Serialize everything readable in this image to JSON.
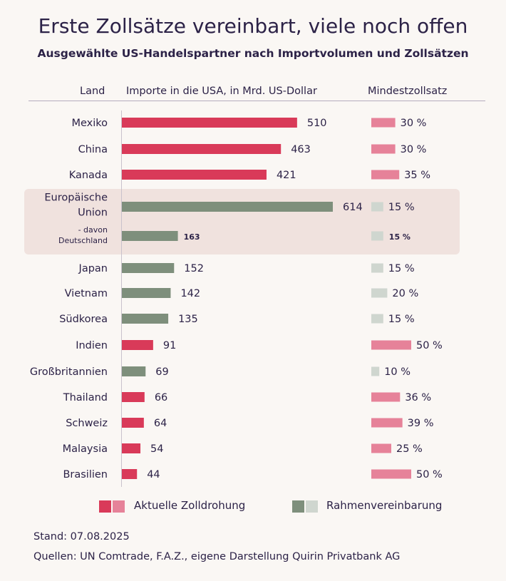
{
  "title": "Erste Zollsätze vereinbart, viele noch offen",
  "subtitle": "Ausgewählte US-Handelspartner nach Importvolumen und Zollsätzen",
  "headers": {
    "land": "Land",
    "imports": "Importe in die USA, in Mrd. US-Dollar",
    "tariff": "Mindestzollsatz"
  },
  "colors": {
    "threat_bar": "#d93a59",
    "threat_tariff": "#e68299",
    "deal_bar": "#7e8f7c",
    "deal_tariff": "#cfd6cf"
  },
  "legend": {
    "threat": "Aktuelle Zolldrohung",
    "deal": "Rahmenvereinbarung"
  },
  "footer": {
    "stand": "Stand: 07.08.2025",
    "source": "Quellen: UN Comtrade, F.A.Z., eigene Darstellung Quirin Privatbank AG"
  },
  "chart_data": {
    "type": "bar",
    "orientation": "horizontal",
    "categories": [
      "Mexiko",
      "China",
      "Kanada",
      "Europäische Union",
      "- davon Deutschland",
      "Japan",
      "Vietnam",
      "Südkorea",
      "Indien",
      "Großbritannien",
      "Thailand",
      "Schweiz",
      "Malaysia",
      "Brasilien"
    ],
    "series": [
      {
        "name": "Importe in die USA, in Mrd. US-Dollar",
        "values": [
          510,
          463,
          421,
          614,
          163,
          152,
          142,
          135,
          91,
          69,
          66,
          64,
          54,
          44
        ],
        "value_labels": [
          "510",
          "463",
          "421",
          "614",
          "163",
          "152",
          "142",
          "135",
          "91",
          "69",
          "66",
          "64",
          "54",
          "44"
        ]
      },
      {
        "name": "Mindestzollsatz",
        "values": [
          30,
          30,
          35,
          15,
          15,
          15,
          20,
          15,
          50,
          10,
          36,
          39,
          25,
          50
        ],
        "value_labels": [
          "30 %",
          "30 %",
          "35 %",
          "15 %",
          "15 %",
          "15 %",
          "20 %",
          "15 %",
          "50 %",
          "10 %",
          "36 %",
          "39 %",
          "25 %",
          "50 %"
        ]
      }
    ],
    "status": [
      "threat",
      "threat",
      "threat",
      "deal",
      "deal",
      "deal",
      "deal",
      "deal",
      "threat",
      "deal",
      "threat",
      "threat",
      "threat",
      "threat"
    ],
    "highlight": "Europäische Union",
    "legend_position": "bottom",
    "grid": false
  }
}
